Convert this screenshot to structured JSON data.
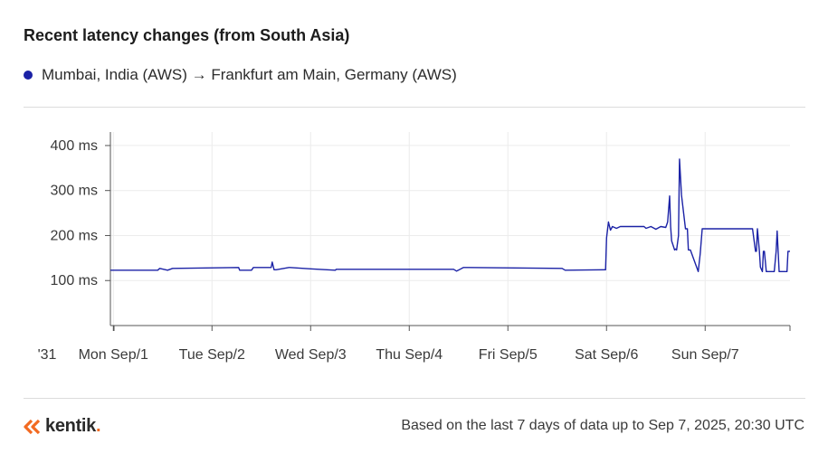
{
  "header": {
    "title": "Recent latency changes (from South Asia)"
  },
  "legend": {
    "label": "Mumbai, India (AWS) → Frankfurt am Main, Germany (AWS)",
    "color": "#1b22a6"
  },
  "footer": {
    "brand": "kentik",
    "brand_accent_color": "#f26a21",
    "note": "Based on the last 7 days of data up to Sep 7, 2025, 20:30 UTC"
  },
  "chart_data": {
    "type": "line",
    "title": "Recent latency changes (from South Asia)",
    "xlabel": "",
    "ylabel": "",
    "y_unit": "ms",
    "ylim": [
      0,
      430
    ],
    "xlim_days": [
      -0.03,
      6.86
    ],
    "yticks": [
      {
        "value": 100,
        "label": "100 ms"
      },
      {
        "value": 200,
        "label": "200 ms"
      },
      {
        "value": 300,
        "label": "300 ms"
      },
      {
        "value": 400,
        "label": "400 ms"
      }
    ],
    "xticks": [
      {
        "value": -0.4,
        "label": "'31"
      },
      {
        "value": 0,
        "label": "Mon Sep/1"
      },
      {
        "value": 1,
        "label": "Tue Sep/2"
      },
      {
        "value": 2,
        "label": "Wed Sep/3"
      },
      {
        "value": 3,
        "label": "Thu Sep/4"
      },
      {
        "value": 4,
        "label": "Fri Sep/5"
      },
      {
        "value": 5,
        "label": "Sat Sep/6"
      },
      {
        "value": 6,
        "label": "Sun Sep/7"
      }
    ],
    "grid": true,
    "series": [
      {
        "name": "Mumbai, India (AWS) → Frankfurt am Main, Germany (AWS)",
        "color": "#1b22a6",
        "x": [
          -0.03,
          0.45,
          0.47,
          0.55,
          0.6,
          1.27,
          1.28,
          1.4,
          1.42,
          1.6,
          1.61,
          1.63,
          1.65,
          1.78,
          1.79,
          2.0,
          2.25,
          2.26,
          3.45,
          3.48,
          3.55,
          3.6,
          4.55,
          4.58,
          4.98,
          4.99,
          5.0,
          5.02,
          5.04,
          5.06,
          5.1,
          5.14,
          5.38,
          5.4,
          5.45,
          5.5,
          5.55,
          5.6,
          5.62,
          5.64,
          5.65,
          5.66,
          5.69,
          5.7,
          5.71,
          5.73,
          5.74,
          5.76,
          5.8,
          5.82,
          5.83,
          5.85,
          5.93,
          5.95,
          5.97,
          6.0,
          6.12,
          6.46,
          6.48,
          6.51,
          6.52,
          6.53,
          6.55,
          6.56,
          6.58,
          6.59,
          6.6,
          6.62,
          6.68,
          6.7,
          6.72,
          6.73,
          6.75,
          6.76,
          6.8,
          6.83,
          6.84,
          6.86
        ],
        "y": [
          123,
          123,
          127,
          123,
          127,
          129,
          123,
          123,
          129,
          129,
          141,
          124,
          124,
          129,
          129,
          126,
          123,
          125,
          125,
          121,
          129,
          129,
          127,
          123,
          124,
          124,
          195,
          230,
          212,
          220,
          216,
          220,
          220,
          216,
          220,
          214,
          220,
          218,
          230,
          288,
          220,
          188,
          168,
          170,
          168,
          200,
          370,
          290,
          215,
          215,
          168,
          168,
          120,
          160,
          215,
          215,
          215,
          215,
          215,
          165,
          165,
          215,
          165,
          130,
          120,
          165,
          165,
          120,
          120,
          120,
          165,
          210,
          120,
          120,
          120,
          120,
          165,
          165
        ]
      }
    ]
  }
}
